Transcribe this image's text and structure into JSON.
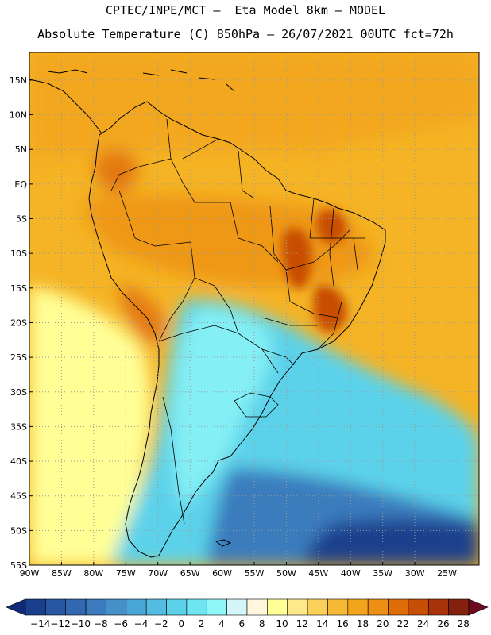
{
  "title_line1": "CPTEC/INPE/MCT –  Eta Model 8km – MODEL",
  "title_line2": "Absolute Temperature (C) 850hPa – 26/07/2021 00UTC fct=72h",
  "lat_labels": [
    "15N",
    "10N",
    "5N",
    "EQ",
    "5S",
    "10S",
    "15S",
    "20S",
    "25S",
    "30S",
    "35S",
    "40S",
    "45S",
    "50S",
    "55S"
  ],
  "lat_values": [
    15,
    10,
    5,
    0,
    -5,
    -10,
    -15,
    -20,
    -25,
    -30,
    -35,
    -40,
    -45,
    -50,
    -55
  ],
  "lon_labels": [
    "90W",
    "85W",
    "80W",
    "75W",
    "70W",
    "65W",
    "60W",
    "55W",
    "50W",
    "45W",
    "40W",
    "35W",
    "30W",
    "25W"
  ],
  "lon_values": [
    -90,
    -85,
    -80,
    -75,
    -70,
    -65,
    -60,
    -55,
    -50,
    -45,
    -40,
    -35,
    -30,
    -25
  ],
  "map_extent": {
    "lon_min": -90,
    "lon_max": -20,
    "lat_min": -55,
    "lat_max": 19
  },
  "colorbar": {
    "labels": [
      "−14",
      "−12",
      "−10",
      "−8",
      "−6",
      "−4",
      "−2",
      "0",
      "2",
      "4",
      "6",
      "8",
      "10",
      "12",
      "14",
      "16",
      "18",
      "20",
      "22",
      "24",
      "26",
      "28"
    ],
    "colors": [
      "#1a3f8c",
      "#2657a0",
      "#3168b0",
      "#3b7bbd",
      "#4590c8",
      "#4aa6d6",
      "#52bde0",
      "#5cd2ea",
      "#6ee6f2",
      "#8ef6f6",
      "#d4f6fb",
      "#fff6dc",
      "#ffff96",
      "#fde88a",
      "#fbd05a",
      "#f6b935",
      "#f2a51c",
      "#ec8f14",
      "#e06e08",
      "#c84e06",
      "#a8320a",
      "#84200e"
    ],
    "low_arrow": "#102a78",
    "high_arrow": "#6e0a20"
  },
  "fields": {
    "base_color": "#f5b425",
    "north_color": "#f2a51c",
    "patagonia_color": "#5cd2ea",
    "cold_core_color": "#8ef6f6",
    "sw_ocean_color": "#3b7bbd",
    "deep_cold_color": "#1a3f8c",
    "pacific_cool_color": "#ffff96",
    "warm_interior_color": "#ec8f14",
    "hot_core_color": "#c84e06",
    "andes_warm_color": "#e06e08"
  }
}
